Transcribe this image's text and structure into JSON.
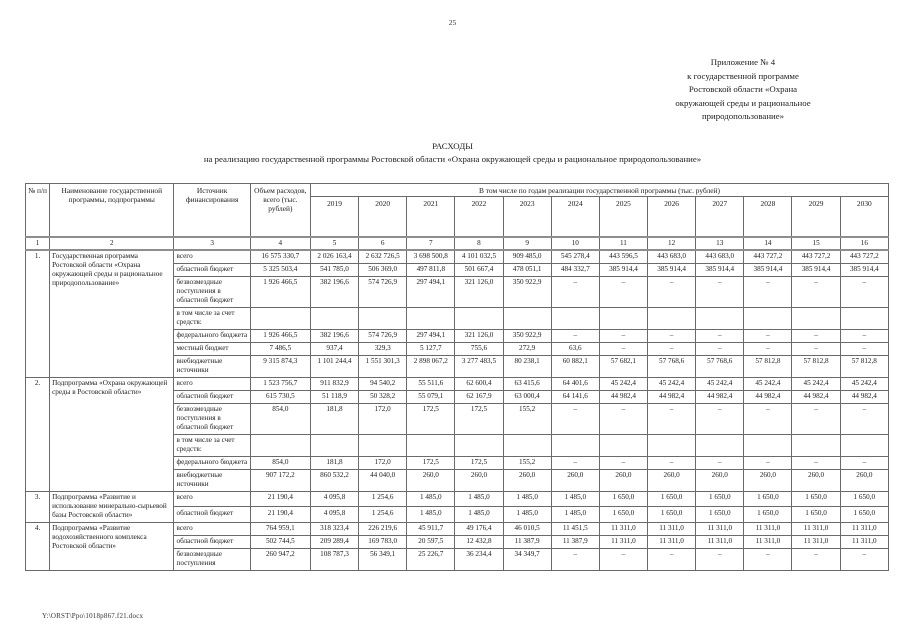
{
  "page": {
    "number": "25",
    "footer_path": "Y:\\ORST\\Ppo\\1018p867.f21.docx"
  },
  "appendix": {
    "lines": [
      "Приложение № 4",
      "к государственной программе",
      "Ростовской области «Охрана",
      "окружающей среды и рациональное",
      "природопользование»"
    ]
  },
  "title": "РАСХОДЫ",
  "subtitle": "на реализацию государственной программы Ростовской области «Охрана окружающей среды и рациональное природопользование»",
  "table": {
    "headers": {
      "num": "№ п/п",
      "name": "Наименование государственной программы, подпрограммы",
      "source": "Источник финансирования",
      "volume": "Объем расходов, всего (тыс. рублей)",
      "years_group": "В том числе по годам реализации государственной программы (тыс. рублей)",
      "years": [
        "2019",
        "2020",
        "2021",
        "2022",
        "2023",
        "2024",
        "2025",
        "2026",
        "2027",
        "2028",
        "2029",
        "2030"
      ],
      "column_numbers": [
        "1",
        "2",
        "3",
        "4",
        "5",
        "6",
        "7",
        "8",
        "9",
        "10",
        "11",
        "12",
        "13",
        "14",
        "15",
        "16"
      ]
    },
    "sections": [
      {
        "num": "1.",
        "name": "Государственная программа Ростовской области «Охрана окружающей среды и рациональное природопользование»",
        "rows": [
          {
            "source": "всего",
            "values": [
              "16 575 330,7",
              "2 026 163,4",
              "2 632 726,5",
              "3 698 500,8",
              "4 101 032,5",
              "909 485,0",
              "545 278,4",
              "443 596,5",
              "443 683,0",
              "443 683,0",
              "443 727,2",
              "443 727,2",
              "443 727,2"
            ]
          },
          {
            "source": "областной бюджет",
            "values": [
              "5 325 503,4",
              "541 785,0",
              "506 369,0",
              "497 811,8",
              "501 667,4",
              "478 051,1",
              "484 332,7",
              "385 914,4",
              "385 914,4",
              "385 914,4",
              "385 914,4",
              "385 914,4",
              "385 914,4"
            ]
          },
          {
            "source": "безвозмездные поступления в областной бюджет",
            "values": [
              "1 926 466,5",
              "382 196,6",
              "574 726,9",
              "297 494,1",
              "321 126,0",
              "350 922,9",
              "–",
              "–",
              "–",
              "–",
              "–",
              "–",
              "–"
            ]
          },
          {
            "source": "в том числе за счет средств:",
            "values": []
          },
          {
            "source": "федерального бюджета",
            "values": [
              "1 926 466,5",
              "382 196,6",
              "574 726,9",
              "297 494,1",
              "321 126,0",
              "350 922,9",
              "–",
              "–",
              "–",
              "–",
              "–",
              "–",
              "–"
            ]
          },
          {
            "source": "местный бюджет",
            "values": [
              "7 486,5",
              "937,4",
              "329,3",
              "5 127,7",
              "755,6",
              "272,9",
              "63,6",
              "–",
              "–",
              "–",
              "–",
              "–",
              "–"
            ]
          },
          {
            "source": "внебюджетные источники",
            "values": [
              "9 315 874,3",
              "1 101 244,4",
              "1 551 301,3",
              "2 898 067,2",
              "3 277 483,5",
              "80 238,1",
              "60 882,1",
              "57 682,1",
              "57 768,6",
              "57 768,6",
              "57 812,8",
              "57 812,8",
              "57 812,8"
            ]
          }
        ]
      },
      {
        "num": "2.",
        "name": "Подпрограмма «Охрана окружающей среды в Ростовской области»",
        "rows": [
          {
            "source": "всего",
            "values": [
              "1 523 756,7",
              "911 832,9",
              "94 540,2",
              "55 511,6",
              "62 600,4",
              "63 415,6",
              "64 401,6",
              "45 242,4",
              "45 242,4",
              "45 242,4",
              "45 242,4",
              "45 242,4",
              "45 242,4"
            ]
          },
          {
            "source": "областной бюджет",
            "values": [
              "615 730,5",
              "51 118,9",
              "50 328,2",
              "55 079,1",
              "62 167,9",
              "63 000,4",
              "64 141,6",
              "44 982,4",
              "44 982,4",
              "44 982,4",
              "44 982,4",
              "44 982,4",
              "44 982,4"
            ]
          },
          {
            "source": "безвозмездные поступления в областной бюджет",
            "values": [
              "854,0",
              "181,8",
              "172,0",
              "172,5",
              "172,5",
              "155,2",
              "–",
              "–",
              "–",
              "–",
              "–",
              "–",
              "–"
            ]
          },
          {
            "source": "в том числе за счет средств:",
            "values": []
          },
          {
            "source": "федерального бюджета",
            "values": [
              "854,0",
              "181,8",
              "172,0",
              "172,5",
              "172,5",
              "155,2",
              "–",
              "–",
              "–",
              "–",
              "–",
              "–",
              "–"
            ]
          },
          {
            "source": "внебюджетные источники",
            "values": [
              "907 172,2",
              "860 532,2",
              "44 040,0",
              "260,0",
              "260,0",
              "260,0",
              "260,0",
              "260,0",
              "260,0",
              "260,0",
              "260,0",
              "260,0",
              "260,0"
            ]
          }
        ]
      },
      {
        "num": "3.",
        "name": "Подпрограмма «Развитие и использование минерально-сырьевой базы Ростовской области»",
        "rows": [
          {
            "source": "всего",
            "values": [
              "21 190,4",
              "4 095,8",
              "1 254,6",
              "1 485,0",
              "1 485,0",
              "1 485,0",
              "1 485,0",
              "1 650,0",
              "1 650,0",
              "1 650,0",
              "1 650,0",
              "1 650,0",
              "1 650,0"
            ]
          },
          {
            "source": "областной бюджет",
            "values": [
              "21 190,4",
              "4 095,8",
              "1 254,6",
              "1 485,0",
              "1 485,0",
              "1 485,0",
              "1 485,0",
              "1 650,0",
              "1 650,0",
              "1 650,0",
              "1 650,0",
              "1 650,0",
              "1 650,0"
            ]
          }
        ]
      },
      {
        "num": "4.",
        "name": "Подпрограмма «Развитие водохозяйственного комплекса Ростовской области»",
        "rows": [
          {
            "source": "всего",
            "values": [
              "764 959,1",
              "318 323,4",
              "226 219,6",
              "45 911,7",
              "49 176,4",
              "46 010,5",
              "11 451,5",
              "11 311,0",
              "11 311,0",
              "11 311,0",
              "11 311,0",
              "11 311,0",
              "11 311,0"
            ]
          },
          {
            "source": "областной бюджет",
            "values": [
              "502 744,5",
              "209 289,4",
              "169 783,0",
              "20 597,5",
              "12 432,8",
              "11 387,9",
              "11 387,9",
              "11 311,0",
              "11 311,0",
              "11 311,0",
              "11 311,0",
              "11 311,0",
              "11 311,0"
            ]
          },
          {
            "source": "безвозмездные поступления",
            "values": [
              "260 947,2",
              "108 787,3",
              "56 349,1",
              "25 226,7",
              "36 234,4",
              "34 349,7",
              "–",
              "–",
              "–",
              "–",
              "–",
              "–",
              "–"
            ]
          }
        ]
      }
    ]
  }
}
